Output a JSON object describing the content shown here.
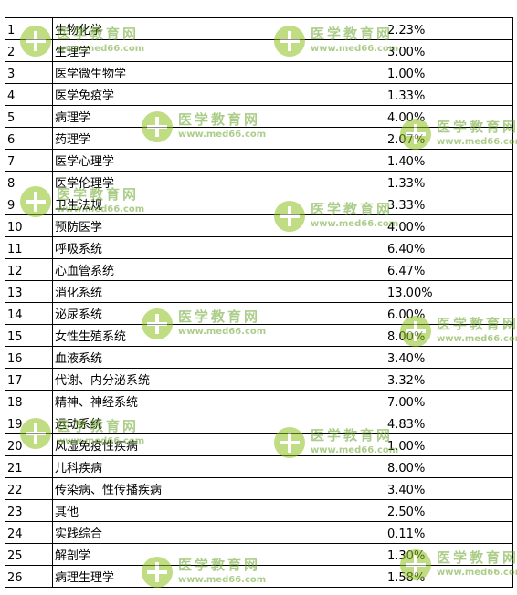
{
  "rows": [
    {
      "no": "1",
      "subject": "生物化学",
      "percent": "2.23%"
    },
    {
      "no": "2",
      "subject": "生理学",
      "percent": "3.00%"
    },
    {
      "no": "3",
      "subject": "医学微生物学",
      "percent": "1.00%"
    },
    {
      "no": "4",
      "subject": "医学免疫学",
      "percent": "1.33%"
    },
    {
      "no": "5",
      "subject": "病理学",
      "percent": "4.00%"
    },
    {
      "no": "6",
      "subject": "药理学",
      "percent": "2.07%"
    },
    {
      "no": "7",
      "subject": "医学心理学",
      "percent": "1.40%"
    },
    {
      "no": "8",
      "subject": "医学伦理学",
      "percent": "1.33%"
    },
    {
      "no": "9",
      "subject": "卫生法规",
      "percent": "3.33%"
    },
    {
      "no": "10",
      "subject": "预防医学",
      "percent": "4.00%"
    },
    {
      "no": "11",
      "subject": "呼吸系统",
      "percent": "6.40%"
    },
    {
      "no": "12",
      "subject": "心血管系统",
      "percent": "6.47%"
    },
    {
      "no": "13",
      "subject": "消化系统",
      "percent": "13.00%"
    },
    {
      "no": "14",
      "subject": "泌尿系统",
      "percent": "6.00%"
    },
    {
      "no": "15",
      "subject": "女性生殖系统",
      "percent": "8.00%"
    },
    {
      "no": "16",
      "subject": "血液系统",
      "percent": "3.40%"
    },
    {
      "no": "17",
      "subject": "代谢、内分泌系统",
      "percent": "3.32%"
    },
    {
      "no": "18",
      "subject": "精神、神经系统",
      "percent": "7.00%"
    },
    {
      "no": "19",
      "subject": "运动系统",
      "percent": "4.83%"
    },
    {
      "no": "20",
      "subject": "风湿免疫性疾病",
      "percent": "1.00%"
    },
    {
      "no": "21",
      "subject": "儿科疾病",
      "percent": "8.00%"
    },
    {
      "no": "22",
      "subject": "传染病、性传播疾病",
      "percent": "3.40%"
    },
    {
      "no": "23",
      "subject": "其他",
      "percent": "2.50%"
    },
    {
      "no": "24",
      "subject": "实践综合",
      "percent": "0.11%"
    },
    {
      "no": "25",
      "subject": "解剖学",
      "percent": "1.30%"
    },
    {
      "no": "26",
      "subject": "病理生理学",
      "percent": "1.58%"
    }
  ],
  "watermark": {
    "name": "医学教育网",
    "url": "www.med66.com",
    "icon": "medical-cross-icon",
    "color": "#8fc31f"
  }
}
